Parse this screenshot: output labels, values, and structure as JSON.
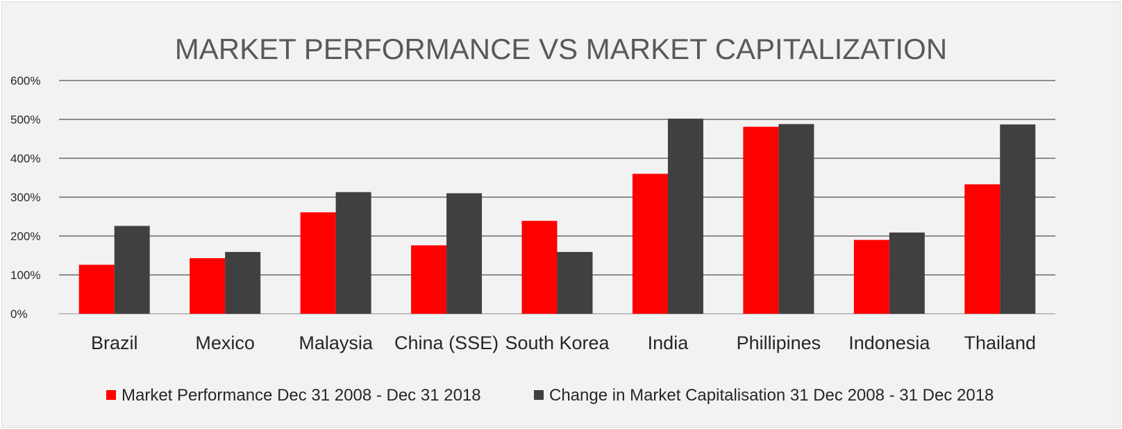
{
  "chart_data": {
    "type": "bar",
    "title": "MARKET PERFORMANCE VS MARKET CAPITALIZATION",
    "categories": [
      "Brazil",
      "Mexico",
      "Malaysia",
      "China (SSE)",
      "South Korea",
      "India",
      "Phillipines",
      "Indonesia",
      "Thailand"
    ],
    "series": [
      {
        "name": "Market Performance Dec 31 2008 - Dec 31 2018",
        "color": "#ff0000",
        "values": [
          126,
          143,
          261,
          176,
          239,
          360,
          481,
          190,
          333
        ]
      },
      {
        "name": "Change in Market Capitalisation 31 Dec 2008 - 31 Dec 2018",
        "color": "#404040",
        "values": [
          226,
          159,
          313,
          310,
          159,
          502,
          488,
          209,
          487
        ]
      }
    ],
    "ylim": [
      0,
      600
    ],
    "yticks": [
      0,
      100,
      200,
      300,
      400,
      500,
      600
    ],
    "ytick_labels": [
      "0%",
      "100%",
      "200%",
      "300%",
      "400%",
      "500%",
      "600%"
    ],
    "grid": true,
    "legend_position": "bottom"
  }
}
